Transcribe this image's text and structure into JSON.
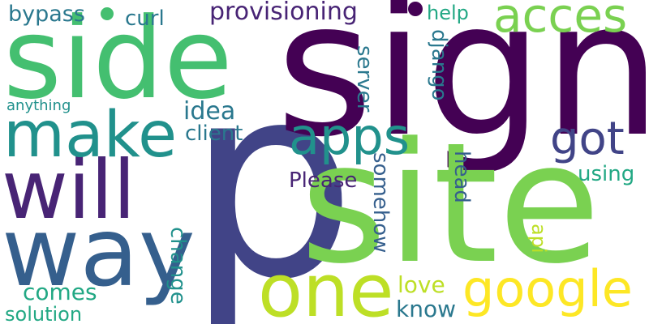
{
  "background": "#ffffff",
  "palette": {
    "dark_purple": "#440154",
    "purple": "#482475",
    "indigo": "#414487",
    "blue": "#355f8d",
    "slate": "#2a788e",
    "teal": "#21918c",
    "sea": "#22a884",
    "green": "#44bf70",
    "light_green": "#7ad151",
    "lime": "#bddf26",
    "yellow": "#fde725"
  },
  "words": {
    "p": "p",
    "sign": "sign",
    "site": "site",
    "side": "side",
    "way": "way",
    "will": "will",
    "make": "make",
    "one": "one",
    "acces": "acces",
    "apps": "apps",
    "google": "google",
    "got": "got",
    "provisioning": "provisioning",
    "bypass": "bypass",
    "curl": "curl",
    "help": "help",
    "django": "django",
    "server": "server",
    "idea": "idea",
    "client": "client",
    "anything": "anything",
    "please": "Please",
    "somehow": "somehow",
    "head": "head",
    "using": "using",
    "api": "api",
    "change": "change",
    "love": "love",
    "know": "know",
    "comes": "comes",
    "solution": "solution"
  },
  "dots": 2
}
